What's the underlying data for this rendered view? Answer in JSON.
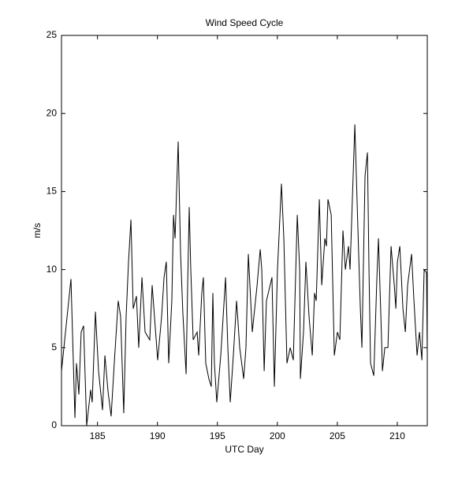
{
  "chart_data": {
    "type": "line",
    "title": "Wind Speed Cycle",
    "x_label": "UTC Day",
    "y_label": "m/s",
    "color": "#000000",
    "x": [
      182,
      182.79,
      183.12,
      183.25,
      183.45,
      183.64,
      183.84,
      184.1,
      184.43,
      184.56,
      184.83,
      185.09,
      185.42,
      185.62,
      185.88,
      186.14,
      186.4,
      186.73,
      186.93,
      187.19,
      187.39,
      187.59,
      187.79,
      187.98,
      188.25,
      188.44,
      188.71,
      188.97,
      189.36,
      189.56,
      190.02,
      190.35,
      190.55,
      190.74,
      190.94,
      191.2,
      191.34,
      191.47,
      191.73,
      191.93,
      192.12,
      192.39,
      192.52,
      192.65,
      192.78,
      192.98,
      193.31,
      193.44,
      193.7,
      193.83,
      194.03,
      194.29,
      194.49,
      194.62,
      194.75,
      194.95,
      195.28,
      195.68,
      195.87,
      196.07,
      196.33,
      196.6,
      196.86,
      197.19,
      197.38,
      197.58,
      197.91,
      198.31,
      198.57,
      198.7,
      198.9,
      199.09,
      199.55,
      199.75,
      200.01,
      200.34,
      200.54,
      200.8,
      201.07,
      201.33,
      201.66,
      201.86,
      201.92,
      202.18,
      202.38,
      202.64,
      202.91,
      203.1,
      203.24,
      203.5,
      203.7,
      203.96,
      204.09,
      204.22,
      204.49,
      204.75,
      205.01,
      205.21,
      205.47,
      205.67,
      205.93,
      206.06,
      206.46,
      206.72,
      206.92,
      207.05,
      207.31,
      207.51,
      207.64,
      207.77,
      208.04,
      208.3,
      208.43,
      208.69,
      208.76,
      208.96,
      209.22,
      209.48,
      209.75,
      209.88,
      210.01,
      210.21,
      210.47,
      210.67,
      210.86,
      211.19,
      211.39,
      211.65,
      211.85,
      212.05,
      212.24,
      212.44,
      212.5
    ],
    "values": [
      3.5,
      9.4,
      0.5,
      4,
      2,
      6,
      6.4,
      0,
      2.3,
      1.5,
      7.3,
      3.5,
      1,
      4.5,
      2.2,
      0.6,
      4,
      8,
      7,
      0.8,
      7,
      10.5,
      13.2,
      7.5,
      8.3,
      5,
      9.5,
      6,
      5.5,
      9,
      4.2,
      7,
      9.5,
      10.5,
      4,
      8,
      13.5,
      12,
      18.2,
      11,
      7.2,
      3.3,
      9,
      14,
      10,
      5.5,
      6,
      4.5,
      8.5,
      9.5,
      4,
      3,
      2.5,
      8.5,
      4,
      1.5,
      4.5,
      9.5,
      5,
      1.5,
      4.5,
      8,
      5,
      3,
      5,
      11,
      6,
      9,
      11.3,
      10,
      3.5,
      8,
      9.5,
      2.5,
      10,
      15.5,
      12,
      4,
      5,
      4.2,
      13.5,
      10,
      3,
      6,
      10.5,
      7,
      4.5,
      8.5,
      8,
      14.5,
      9,
      12,
      11.5,
      14.5,
      13.5,
      4.5,
      6,
      5.5,
      12.5,
      10,
      11.5,
      10,
      19.3,
      12.5,
      7.5,
      5,
      16,
      17.5,
      10,
      4,
      3.2,
      9.5,
      12,
      5.5,
      3.5,
      5,
      5,
      11.5,
      9,
      7.5,
      10.5,
      11.5,
      7.5,
      6,
      9,
      11,
      8,
      4.5,
      6,
      4.2,
      10,
      9.8,
      4.5
    ],
    "xlim": [
      182,
      212.5
    ],
    "xticks": [
      185,
      190,
      195,
      200,
      205,
      210
    ],
    "ylim": [
      0,
      25
    ],
    "yticks": [
      0,
      5,
      10,
      15,
      20,
      25
    ],
    "grid": false
  }
}
